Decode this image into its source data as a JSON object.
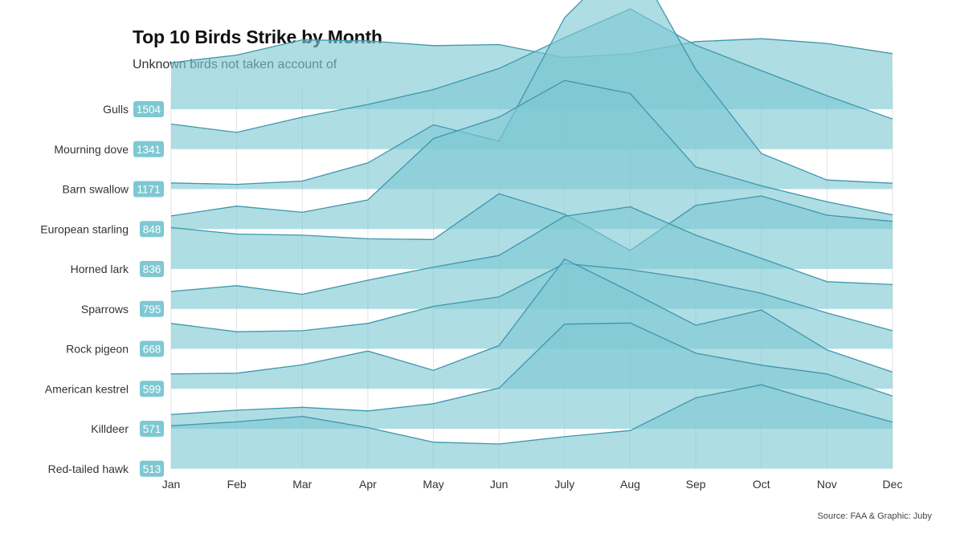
{
  "chart_data": {
    "type": "area",
    "title": "Top 10 Birds Strike by Month",
    "subtitle": "Unknown birds not taken account of",
    "caption": "Source: FAA & Graphic: Juby",
    "xlabel": "",
    "ylabel": "",
    "months": [
      "Jan",
      "Feb",
      "Mar",
      "Apr",
      "May",
      "Jun",
      "July",
      "Aug",
      "Sep",
      "Oct",
      "Nov",
      "Dec"
    ],
    "area_color": "#7ec8d3",
    "line_color": "#3e97ad",
    "badge_color": "#7ec8d3",
    "ridge_max": 210,
    "series": [
      {
        "name": "Gulls",
        "total": 1504,
        "values": [
          117,
          138,
          180,
          177,
          164,
          167,
          131,
          142,
          175,
          183,
          170,
          142
        ]
      },
      {
        "name": "Mourning dove",
        "total": 1341,
        "values": [
          58,
          35,
          77,
          112,
          153,
          211,
          296,
          375,
          275,
          205,
          136,
          72
        ]
      },
      {
        "name": "Barn swallow",
        "total": 1171,
        "values": [
          6,
          2,
          11,
          61,
          166,
          121,
          461,
          640,
          318,
          87,
          14,
          5
        ]
      },
      {
        "name": "European starling",
        "total": 848,
        "values": [
          25,
          52,
          35,
          69,
          238,
          297,
          398,
          362,
          160,
          108,
          64,
          28
        ]
      },
      {
        "name": "Horned lark",
        "total": 836,
        "values": [
          103,
          85,
          82,
          72,
          70,
          196,
          140,
          40,
          164,
          190,
          137,
          120
        ]
      },
      {
        "name": "Sparrows",
        "total": 795,
        "values": [
          37,
          53,
          29,
          68,
          104,
          136,
          244,
          270,
          192,
          128,
          64,
          56
        ]
      },
      {
        "name": "Rock pigeon",
        "total": 668,
        "values": [
          59,
          36,
          39,
          59,
          106,
          132,
          224,
          207,
          180,
          142,
          88,
          39
        ]
      },
      {
        "name": "American kestrel",
        "total": 599,
        "values": [
          30,
          32,
          55,
          93,
          40,
          108,
          346,
          257,
          164,
          206,
          96,
          35
        ]
      },
      {
        "name": "Killdeer",
        "total": 571,
        "values": [
          28,
          40,
          48,
          38,
          58,
          101,
          277,
          280,
          197,
          164,
          140,
          79
        ]
      },
      {
        "name": "Red-tailed hawk",
        "total": 513,
        "values": [
          107,
          118,
          133,
          102,
          62,
          57,
          77,
          94,
          184,
          220,
          167,
          117
        ]
      }
    ]
  }
}
